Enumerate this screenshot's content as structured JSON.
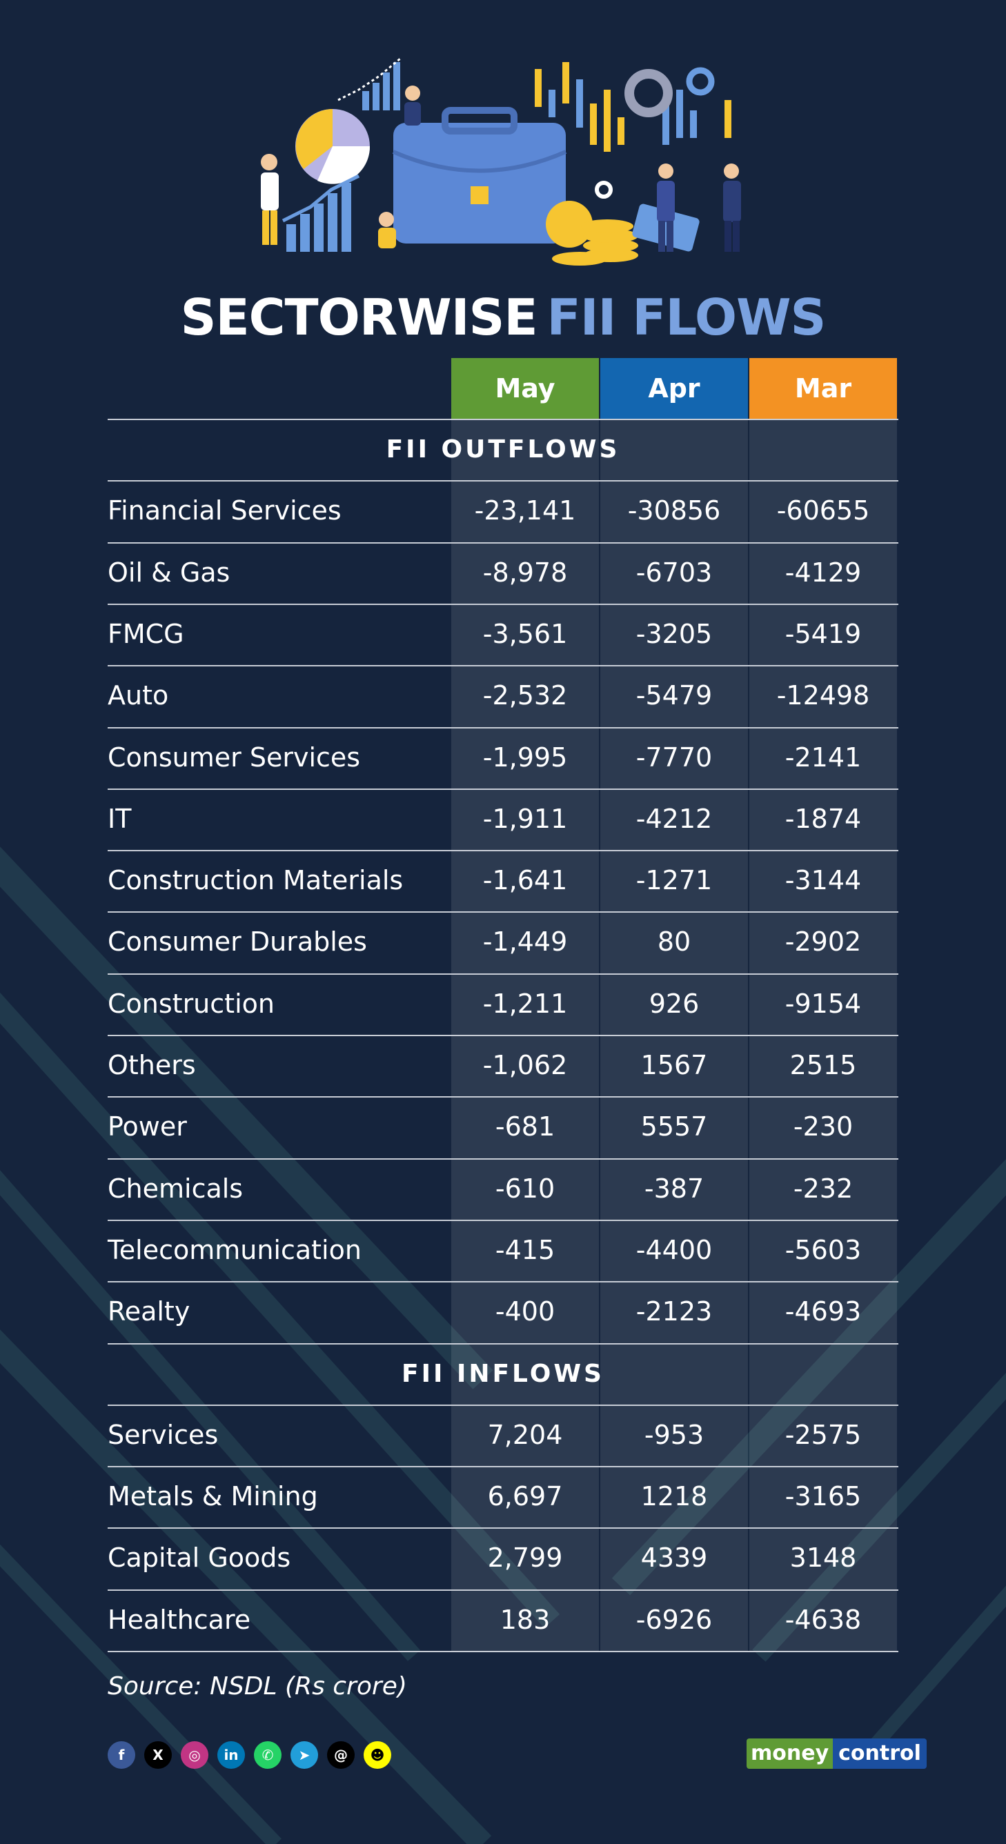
{
  "title": {
    "part1": "SECTORWISE",
    "part2": "FII FLOWS"
  },
  "columns": [
    {
      "label": "May",
      "color": "#5f9b35"
    },
    {
      "label": "Apr",
      "color": "#1366b0"
    },
    {
      "label": "Mar",
      "color": "#f39223"
    }
  ],
  "outflows": {
    "heading": "FII OUTFLOWS",
    "rows": [
      {
        "sector": "Financial Services",
        "may": "-23,141",
        "apr": "-30856",
        "mar": "-60655"
      },
      {
        "sector": "Oil & Gas",
        "may": "-8,978",
        "apr": "-6703",
        "mar": "-4129"
      },
      {
        "sector": "FMCG",
        "may": "-3,561",
        "apr": "-3205",
        "mar": "-5419"
      },
      {
        "sector": "Auto",
        "may": "-2,532",
        "apr": "-5479",
        "mar": "-12498"
      },
      {
        "sector": "Consumer Services",
        "may": "-1,995",
        "apr": "-7770",
        "mar": "-2141"
      },
      {
        "sector": "IT",
        "may": "-1,911",
        "apr": "-4212",
        "mar": "-1874"
      },
      {
        "sector": "Construction Materials",
        "may": "-1,641",
        "apr": "-1271",
        "mar": "-3144"
      },
      {
        "sector": "Consumer Durables",
        "may": "-1,449",
        "apr": "80",
        "mar": "-2902"
      },
      {
        "sector": "Construction",
        "may": "-1,211",
        "apr": "926",
        "mar": "-9154"
      },
      {
        "sector": "Others",
        "may": "-1,062",
        "apr": "1567",
        "mar": "2515"
      },
      {
        "sector": "Power",
        "may": "-681",
        "apr": "5557",
        "mar": "-230"
      },
      {
        "sector": "Chemicals",
        "may": "-610",
        "apr": "-387",
        "mar": "-232"
      },
      {
        "sector": "Telecommunication",
        "may": "-415",
        "apr": "-4400",
        "mar": "-5603"
      },
      {
        "sector": "Realty",
        "may": "-400",
        "apr": "-2123",
        "mar": "-4693"
      }
    ]
  },
  "inflows": {
    "heading": "FII INFLOWS",
    "rows": [
      {
        "sector": "Services",
        "may": "7,204",
        "apr": "-953",
        "mar": "-2575"
      },
      {
        "sector": "Metals & Mining",
        "may": "6,697",
        "apr": "1218",
        "mar": "-3165"
      },
      {
        "sector": "Capital Goods",
        "may": "2,799",
        "apr": "4339",
        "mar": "3148"
      },
      {
        "sector": "Healthcare",
        "may": "183",
        "apr": "-6926",
        "mar": "-4638"
      }
    ]
  },
  "source": "Source: NSDL (Rs crore)",
  "social_icons": [
    {
      "name": "facebook-icon",
      "glyph": "f",
      "color": "#3b5998"
    },
    {
      "name": "x-icon",
      "glyph": "X",
      "color": "#000000"
    },
    {
      "name": "instagram-icon",
      "glyph": "◎",
      "color": "#c13584"
    },
    {
      "name": "linkedin-icon",
      "glyph": "in",
      "color": "#0077b5"
    },
    {
      "name": "whatsapp-icon",
      "glyph": "✆",
      "color": "#25d366"
    },
    {
      "name": "telegram-icon",
      "glyph": "➤",
      "color": "#229ed9"
    },
    {
      "name": "threads-icon",
      "glyph": "@",
      "color": "#000000"
    },
    {
      "name": "snapchat-icon",
      "glyph": "☻",
      "color": "#fffc00"
    }
  ],
  "logo": {
    "part1": "money",
    "part2": "control"
  }
}
